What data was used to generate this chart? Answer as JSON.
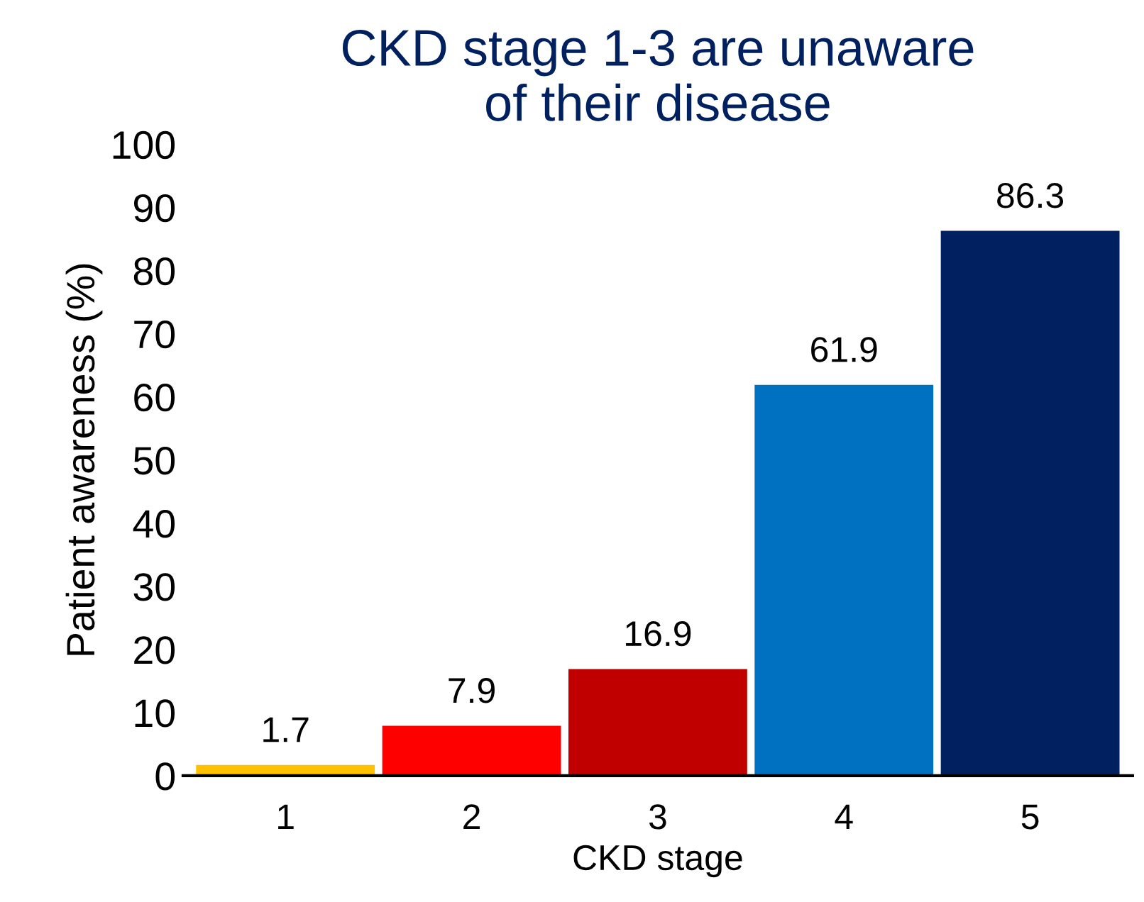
{
  "chart_data": {
    "type": "bar",
    "title": "CKD stage 1-3 are unaware\nof their disease",
    "xlabel": "CKD stage",
    "ylabel": "Patient awareness (%)",
    "categories": [
      "1",
      "2",
      "3",
      "4",
      "5"
    ],
    "values": [
      1.7,
      7.9,
      16.9,
      61.9,
      86.3
    ],
    "colors": [
      "#ffc000",
      "#ff0000",
      "#c00000",
      "#0070c0",
      "#002060"
    ],
    "ylim": [
      0,
      100
    ],
    "yticks": [
      0,
      10,
      20,
      30,
      40,
      50,
      60,
      70,
      80,
      90,
      100
    ],
    "data_labels": true,
    "grid": false,
    "legend": false
  }
}
